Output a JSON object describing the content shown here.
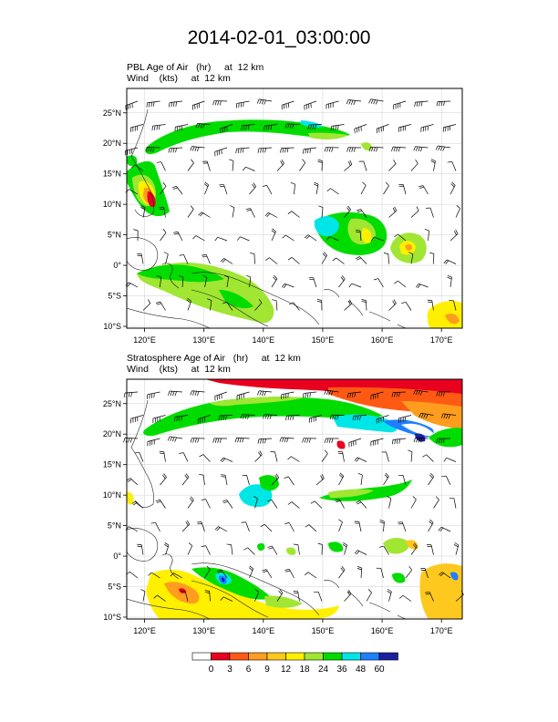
{
  "page_title": "2014-02-01_03:00:00",
  "panels": [
    {
      "field_label": "PBL Age of Air",
      "field_units": "(hr)",
      "field_level": "at  12 km",
      "wind_label": "Wind",
      "wind_units": "(kts)",
      "wind_level": "at  12 km"
    },
    {
      "field_label": "Stratosphere Age of Air",
      "field_units": "(hr)",
      "field_level": "at  12 km",
      "wind_label": "Wind",
      "wind_units": "(kts)",
      "wind_level": "at  12 km"
    }
  ],
  "axes": {
    "lat_ticks": [
      {
        "value": 25,
        "label": "25°N"
      },
      {
        "value": 20,
        "label": "20°N"
      },
      {
        "value": 15,
        "label": "15°N"
      },
      {
        "value": 10,
        "label": "10°N"
      },
      {
        "value": 5,
        "label": "5°N"
      },
      {
        "value": 0,
        "label": "0°"
      },
      {
        "value": -5,
        "label": "5°S"
      },
      {
        "value": -10,
        "label": "10°S"
      }
    ],
    "lon_ticks": [
      {
        "value": 120,
        "label": "120°E"
      },
      {
        "value": 130,
        "label": "130°E"
      },
      {
        "value": 140,
        "label": "140°E"
      },
      {
        "value": 150,
        "label": "150°E"
      },
      {
        "value": 160,
        "label": "160°E"
      },
      {
        "value": 170,
        "label": "170°E"
      }
    ],
    "lon_range": [
      117,
      173.5
    ],
    "lat_range": [
      -10.3,
      29
    ]
  },
  "colorbar": {
    "labels": [
      "0",
      "3",
      "6",
      "9",
      "12",
      "18",
      "24",
      "36",
      "48",
      "60"
    ],
    "colors": [
      "#ffffff",
      "#e8001e",
      "#ff5a14",
      "#ff9d1e",
      "#ffc81e",
      "#fff000",
      "#a0e632",
      "#00dc00",
      "#00e6e6",
      "#1e7fff",
      "#1e1ea0"
    ]
  },
  "colors": {
    "red": "#e8001e",
    "orange": "#ff5a14",
    "amber": "#ff9d1e",
    "gold": "#ffc81e",
    "yellow": "#fff000",
    "lime": "#a0e632",
    "green": "#00dc00",
    "cyan": "#00e6e6",
    "blue": "#1e7fff",
    "navy": "#1e1ea0"
  }
}
